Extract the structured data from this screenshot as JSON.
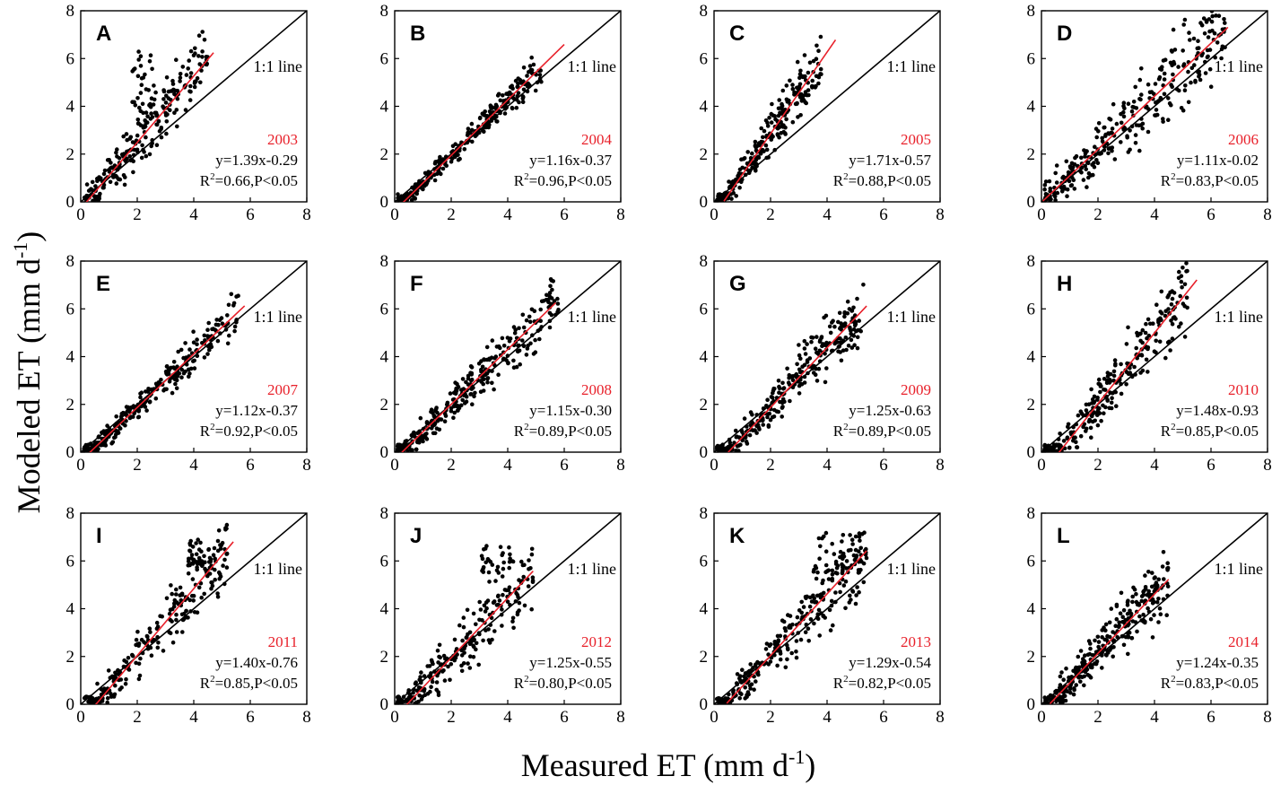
{
  "figure": {
    "ylabel_main": "Modeled ET (mm d",
    "ylabel_sup": "-1",
    "ylabel_close": ")",
    "xlabel_main": "Measured ET (mm d",
    "xlabel_sup": "-1",
    "xlabel_close": ")"
  },
  "colors": {
    "points": "#000000",
    "fit_line": "#e8202a",
    "one_to_one": "#000000",
    "year_text": "#e8202a"
  },
  "chart_data": [
    {
      "panel": "A",
      "type": "scatter",
      "year": "2003",
      "equation": "y=1.39x-0.29",
      "r2_prefix": "R",
      "r2_sup": "2",
      "r2_suffix": "=0.66,P<0.05",
      "slope": 1.39,
      "intercept": -0.29,
      "fit_xrange": [
        0.05,
        4.7
      ],
      "line_label": "1:1 line",
      "xlim": [
        0,
        8
      ],
      "ylim": [
        0,
        8
      ],
      "xticks": [
        0,
        2,
        4,
        6,
        8
      ],
      "yticks": [
        0,
        2,
        4,
        6,
        8
      ],
      "xmax": 4.5,
      "n": 260,
      "cluster": [
        1.8,
        2.7,
        3.6,
        6.3
      ],
      "noise": 0.6,
      "seed": 11
    },
    {
      "panel": "B",
      "type": "scatter",
      "year": "2004",
      "equation": "y=1.16x-0.37",
      "r2_prefix": "R",
      "r2_sup": "2",
      "r2_suffix": "=0.96,P<0.05",
      "slope": 1.16,
      "intercept": -0.37,
      "fit_xrange": [
        0.3,
        6.0
      ],
      "line_label": "1:1 line",
      "xlim": [
        0,
        8
      ],
      "ylim": [
        0,
        8
      ],
      "xticks": [
        0,
        2,
        4,
        6,
        8
      ],
      "yticks": [
        0,
        2,
        4,
        6,
        8
      ],
      "xmax": 5.2,
      "n": 280,
      "cluster": null,
      "noise": 0.28,
      "seed": 23
    },
    {
      "panel": "C",
      "type": "scatter",
      "year": "2005",
      "equation": "y=1.71x-0.57",
      "r2_prefix": "R",
      "r2_sup": "2",
      "r2_suffix": "=0.88,P<0.05",
      "slope": 1.71,
      "intercept": -0.57,
      "fit_xrange": [
        0.35,
        4.3
      ],
      "line_label": "1:1 line",
      "xlim": [
        0,
        8
      ],
      "ylim": [
        0,
        8
      ],
      "xticks": [
        0,
        2,
        4,
        6,
        8
      ],
      "yticks": [
        0,
        2,
        4,
        6,
        8
      ],
      "xmax": 3.8,
      "n": 260,
      "cluster": null,
      "noise": 0.45,
      "seed": 37
    },
    {
      "panel": "D",
      "type": "scatter",
      "year": "2006",
      "equation": "y=1.11x-0.02",
      "r2_prefix": "R",
      "r2_sup": "2",
      "r2_suffix": "=0.83,P<0.05",
      "slope": 1.11,
      "intercept": -0.02,
      "fit_xrange": [
        0.05,
        6.6
      ],
      "line_label": "1:1 line",
      "xlim": [
        0,
        8
      ],
      "ylim": [
        0,
        8
      ],
      "xticks": [
        0,
        2,
        4,
        6,
        8
      ],
      "yticks": [
        0,
        2,
        4,
        6,
        8
      ],
      "xmax": 6.5,
      "n": 300,
      "cluster": null,
      "noise": 0.7,
      "seed": 41
    },
    {
      "panel": "E",
      "type": "scatter",
      "year": "2007",
      "equation": "y=1.12x-0.37",
      "r2_prefix": "R",
      "r2_sup": "2",
      "r2_suffix": "=0.92,P<0.05",
      "slope": 1.12,
      "intercept": -0.37,
      "fit_xrange": [
        0.3,
        5.8
      ],
      "line_label": "1:1 line",
      "xlim": [
        0,
        8
      ],
      "ylim": [
        0,
        8
      ],
      "xticks": [
        0,
        2,
        4,
        6,
        8
      ],
      "yticks": [
        0,
        2,
        4,
        6,
        8
      ],
      "xmax": 5.6,
      "n": 280,
      "cluster": null,
      "noise": 0.35,
      "seed": 53
    },
    {
      "panel": "F",
      "type": "scatter",
      "year": "2008",
      "equation": "y=1.15x-0.30",
      "r2_prefix": "R",
      "r2_sup": "2",
      "r2_suffix": "=0.89,P<0.05",
      "slope": 1.15,
      "intercept": -0.3,
      "fit_xrange": [
        0.25,
        5.7
      ],
      "line_label": "1:1 line",
      "xlim": [
        0,
        8
      ],
      "ylim": [
        0,
        8
      ],
      "xticks": [
        0,
        2,
        4,
        6,
        8
      ],
      "yticks": [
        0,
        2,
        4,
        6,
        8
      ],
      "xmax": 5.8,
      "n": 300,
      "cluster": null,
      "noise": 0.45,
      "seed": 67
    },
    {
      "panel": "G",
      "type": "scatter",
      "year": "2009",
      "equation": "y=1.25x-0.63",
      "r2_prefix": "R",
      "r2_sup": "2",
      "r2_suffix": "=0.89,P<0.05",
      "slope": 1.25,
      "intercept": -0.63,
      "fit_xrange": [
        0.5,
        5.4
      ],
      "line_label": "1:1 line",
      "xlim": [
        0,
        8
      ],
      "ylim": [
        0,
        8
      ],
      "xticks": [
        0,
        2,
        4,
        6,
        8
      ],
      "yticks": [
        0,
        2,
        4,
        6,
        8
      ],
      "xmax": 5.3,
      "n": 280,
      "cluster": null,
      "noise": 0.5,
      "seed": 71
    },
    {
      "panel": "H",
      "type": "scatter",
      "year": "2010",
      "equation": "y=1.48x-0.93",
      "r2_prefix": "R",
      "r2_sup": "2",
      "r2_suffix": "=0.85,P<0.05",
      "slope": 1.48,
      "intercept": -0.93,
      "fit_xrange": [
        0.6,
        5.5
      ],
      "line_label": "1:1 line",
      "xlim": [
        0,
        8
      ],
      "ylim": [
        0,
        8
      ],
      "xticks": [
        0,
        2,
        4,
        6,
        8
      ],
      "yticks": [
        0,
        2,
        4,
        6,
        8
      ],
      "xmax": 5.2,
      "n": 260,
      "cluster": null,
      "noise": 0.6,
      "seed": 83
    },
    {
      "panel": "I",
      "type": "scatter",
      "year": "2011",
      "equation": "y=1.40x-0.76",
      "r2_prefix": "R",
      "r2_sup": "2",
      "r2_suffix": "=0.85,P<0.05",
      "slope": 1.4,
      "intercept": -0.76,
      "fit_xrange": [
        0.5,
        5.4
      ],
      "line_label": "1:1 line",
      "xlim": [
        0,
        8
      ],
      "ylim": [
        0,
        8
      ],
      "xticks": [
        0,
        2,
        4,
        6,
        8
      ],
      "yticks": [
        0,
        2,
        4,
        6,
        8
      ],
      "xmax": 5.2,
      "n": 260,
      "cluster": [
        3.8,
        4.3,
        5.8,
        7.0
      ],
      "noise": 0.55,
      "seed": 97
    },
    {
      "panel": "J",
      "type": "scatter",
      "year": "2012",
      "equation": "y=1.25x-0.55",
      "r2_prefix": "R",
      "r2_sup": "2",
      "r2_suffix": "=0.80,P<0.05",
      "slope": 1.25,
      "intercept": -0.55,
      "fit_xrange": [
        0.4,
        4.9
      ],
      "line_label": "1:1 line",
      "xlim": [
        0,
        8
      ],
      "ylim": [
        0,
        8
      ],
      "xticks": [
        0,
        2,
        4,
        6,
        8
      ],
      "yticks": [
        0,
        2,
        4,
        6,
        8
      ],
      "xmax": 4.9,
      "n": 250,
      "cluster": [
        3.0,
        4.2,
        5.5,
        6.7
      ],
      "noise": 0.6,
      "seed": 101
    },
    {
      "panel": "K",
      "type": "scatter",
      "year": "2013",
      "equation": "y=1.29x-0.54",
      "r2_prefix": "R",
      "r2_sup": "2",
      "r2_suffix": "=0.82,P<0.05",
      "slope": 1.29,
      "intercept": -0.54,
      "fit_xrange": [
        0.45,
        5.4
      ],
      "line_label": "1:1 line",
      "xlim": [
        0,
        8
      ],
      "ylim": [
        0,
        8
      ],
      "xticks": [
        0,
        2,
        4,
        6,
        8
      ],
      "yticks": [
        0,
        2,
        4,
        6,
        8
      ],
      "xmax": 5.4,
      "n": 300,
      "cluster": [
        3.5,
        5.2,
        5.5,
        7.2
      ],
      "noise": 0.6,
      "seed": 113
    },
    {
      "panel": "L",
      "type": "scatter",
      "year": "2014",
      "equation": "y=1.24x-0.35",
      "r2_prefix": "R",
      "r2_sup": "2",
      "r2_suffix": "=0.83,P<0.05",
      "slope": 1.24,
      "intercept": -0.35,
      "fit_xrange": [
        0.3,
        4.5
      ],
      "line_label": "1:1 line",
      "xlim": [
        0,
        8
      ],
      "ylim": [
        0,
        8
      ],
      "xticks": [
        0,
        2,
        4,
        6,
        8
      ],
      "yticks": [
        0,
        2,
        4,
        6,
        8
      ],
      "xmax": 4.5,
      "n": 300,
      "cluster": null,
      "noise": 0.55,
      "seed": 127
    }
  ]
}
